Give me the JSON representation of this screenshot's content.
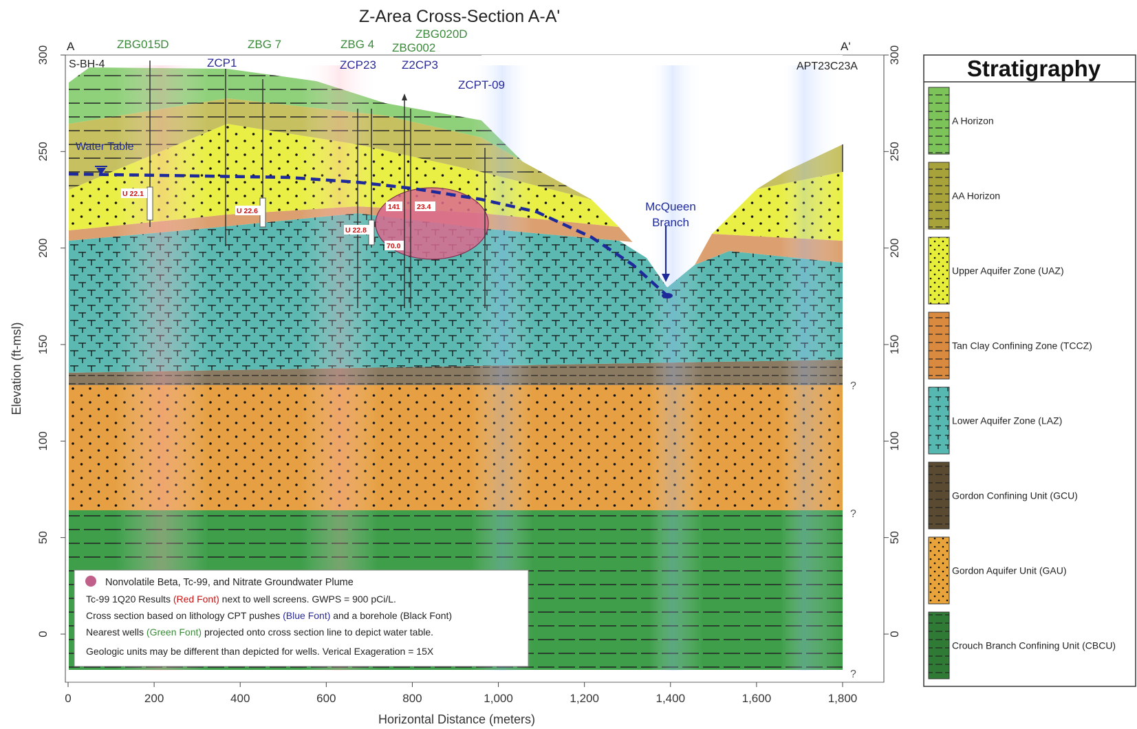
{
  "title": "Z-Area Cross-Section A-A'",
  "axes": {
    "xlabel": "Horizontal Distance (meters)",
    "ylabel": "Elevation (ft-msl)",
    "x_ticks": [
      {
        "value": 0,
        "label": "0"
      },
      {
        "value": 200,
        "label": "200"
      },
      {
        "value": 400,
        "label": "400"
      },
      {
        "value": 600,
        "label": "600"
      },
      {
        "value": 800,
        "label": "800"
      },
      {
        "value": 1000,
        "label": "1,000"
      },
      {
        "value": 1200,
        "label": "1,200"
      },
      {
        "value": 1400,
        "label": "1,400"
      },
      {
        "value": 1600,
        "label": "1,600"
      },
      {
        "value": 1800,
        "label": "1,800"
      }
    ],
    "y_ticks": [
      {
        "value": 300,
        "label": "300"
      },
      {
        "value": 250,
        "label": "250"
      },
      {
        "value": 200,
        "label": "200"
      },
      {
        "value": 150,
        "label": "150"
      },
      {
        "value": 100,
        "label": "100"
      },
      {
        "value": 50,
        "label": "50"
      },
      {
        "value": 0,
        "label": "0"
      }
    ]
  },
  "section_ends": {
    "left": "A",
    "right": "A'"
  },
  "wells": [
    {
      "label": "ZBG015D",
      "type": "nearest-well",
      "color": "#3a8a3a"
    },
    {
      "label": "ZBG 7",
      "type": "nearest-well",
      "color": "#3a8a3a"
    },
    {
      "label": "ZBG 4",
      "type": "nearest-well",
      "color": "#3a8a3a"
    },
    {
      "label": "ZBG020D",
      "type": "nearest-well",
      "color": "#3a8a3a"
    },
    {
      "label": "ZBG002",
      "type": "nearest-well",
      "color": "#3a8a3a"
    },
    {
      "label": "ZCP1",
      "type": "cpt-push",
      "color": "#2a2a9a"
    },
    {
      "label": "ZCP23",
      "type": "cpt-push",
      "color": "#2a2a9a"
    },
    {
      "label": "Z2CP3",
      "type": "cpt-push",
      "color": "#2a2a9a"
    },
    {
      "label": "ZCPT-09",
      "type": "cpt-push",
      "color": "#2a2a9a"
    },
    {
      "label": "S-BH-4",
      "type": "borehole",
      "color": "#222222"
    },
    {
      "label": "APT23C23A",
      "type": "borehole",
      "color": "#222222"
    }
  ],
  "annotations": {
    "water_table": "Water Table",
    "mcqueen": "McQueen",
    "branch": "Branch",
    "question_mark": "?",
    "results": [
      "U 22.1",
      "U 22.6",
      "U 22.8",
      "141",
      "23.4",
      "70.0"
    ]
  },
  "legend_box": {
    "line1": "Nonvolatile Beta, Tc-99, and Nitrate Groundwater Plume",
    "line2_a": "Tc-99 1Q20 Results ",
    "line2_b": "(Red Font)",
    "line2_c": " next to well screens.  GWPS = 900 pCi/L.",
    "line3_a": "Cross section based on lithology CPT pushes ",
    "line3_b": "(Blue Font)",
    "line3_c": " and a borehole (Black Font)",
    "line4_a": "Nearest wells ",
    "line4_b": "(Green Font)",
    "line4_c": " projected onto cross section line to depict water table.",
    "line5": "Geologic units may be different than depicted for wells.  Verical Exageration = 15X"
  },
  "stratigraphy": {
    "title": "Stratigraphy",
    "units": [
      {
        "label": "A Horizon",
        "color": "#7cc35a",
        "pattern": "dash"
      },
      {
        "label": "AA Horizon",
        "color": "#a8a23a",
        "pattern": "dash"
      },
      {
        "label": "Upper Aquifer Zone (UAZ)",
        "color": "#e6ee3a",
        "pattern": "dot"
      },
      {
        "label": "Tan Clay Confining Zone (TCCZ)",
        "color": "#d98a3e",
        "pattern": "dash"
      },
      {
        "label": "Lower Aquifer Zone (LAZ)",
        "color": "#56b8b0",
        "pattern": "tee"
      },
      {
        "label": "Gordon Confining Unit (GCU)",
        "color": "#5a4a32",
        "pattern": "dash"
      },
      {
        "label": "Gordon Aquifer Unit (GAU)",
        "color": "#e8a43a",
        "pattern": "dot"
      },
      {
        "label": "Crouch Branch Confining Unit (CBCU)",
        "color": "#2f7a35",
        "pattern": "dash"
      }
    ]
  },
  "colors": {
    "plume": "#d96a8e",
    "water_table": "#1f2a9a",
    "result_text": "#cc1111"
  }
}
